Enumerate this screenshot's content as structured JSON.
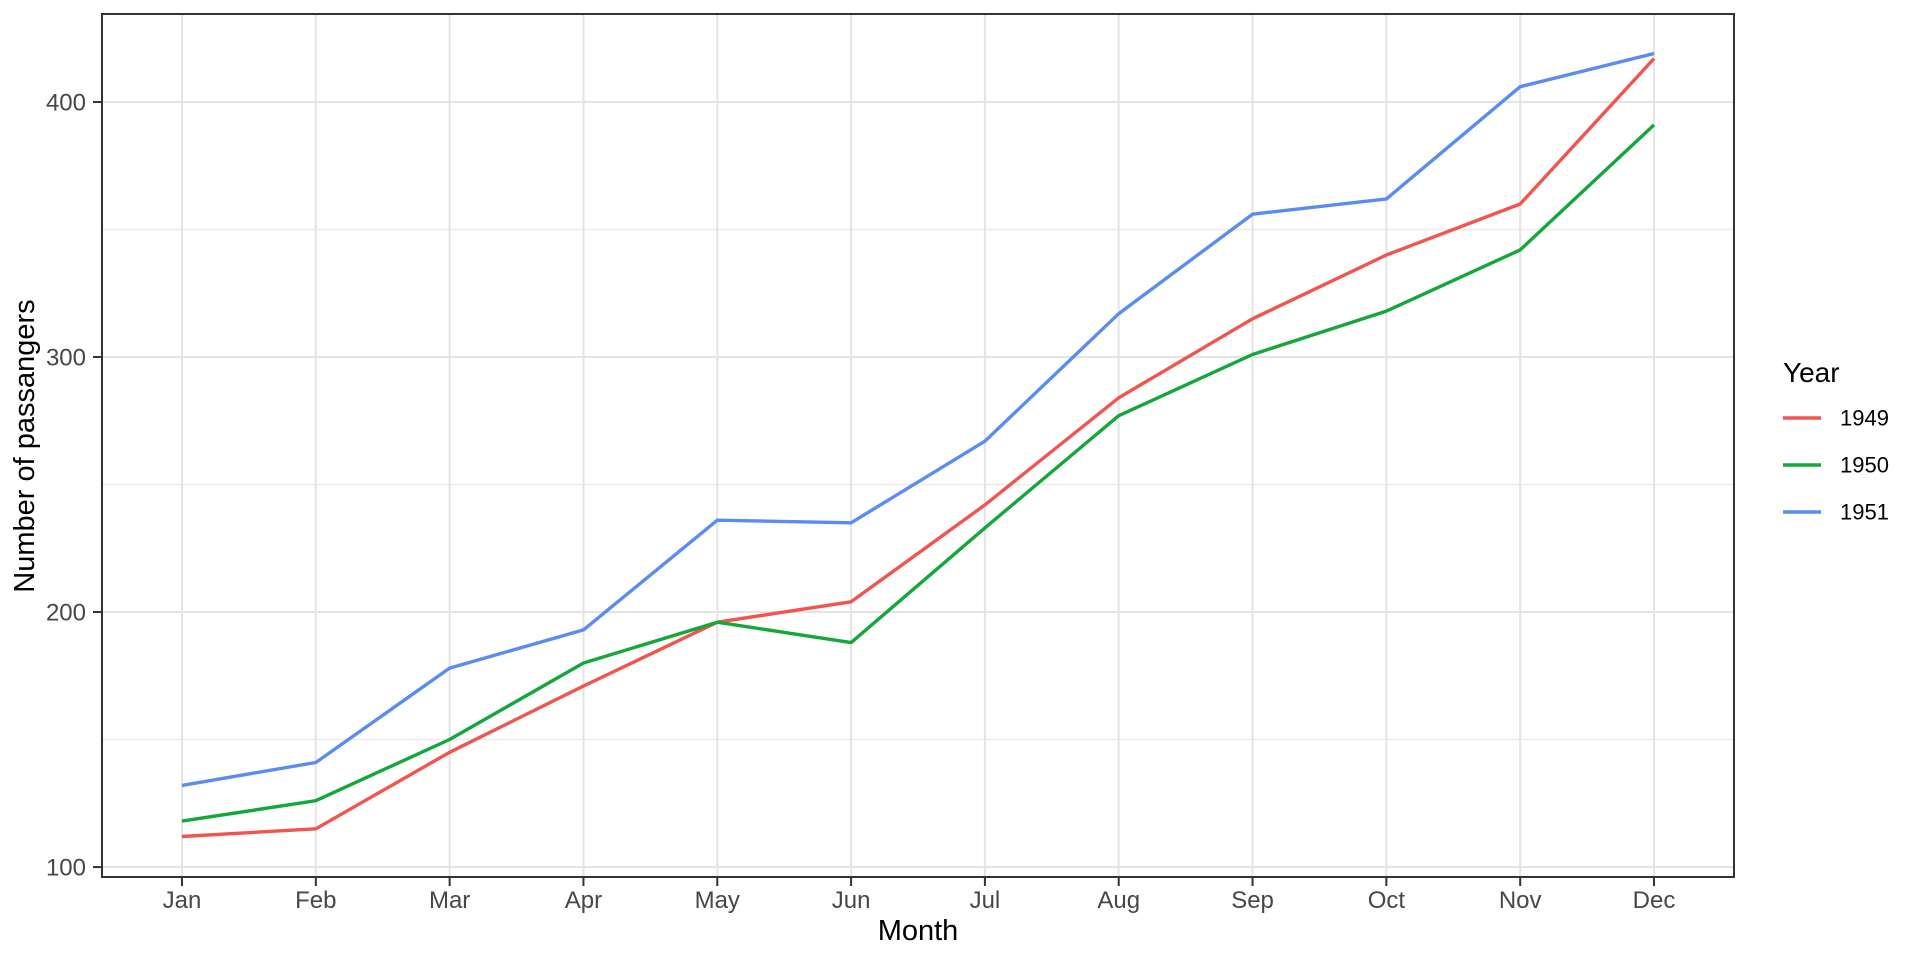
{
  "chart_data": {
    "type": "line",
    "title": "",
    "xlabel": "Month",
    "ylabel": "Number of passangers",
    "categories": [
      "Jan",
      "Feb",
      "Mar",
      "Apr",
      "May",
      "Jun",
      "Jul",
      "Aug",
      "Sep",
      "Oct",
      "Nov",
      "Dec"
    ],
    "series": [
      {
        "name": "1949",
        "color": "#F0554F",
        "values": [
          112,
          115,
          145,
          171,
          196,
          204,
          242,
          284,
          315,
          340,
          360,
          417
        ]
      },
      {
        "name": "1950",
        "color": "#15A63C",
        "values": [
          118,
          126,
          150,
          180,
          196,
          188,
          233,
          277,
          301,
          318,
          342,
          391
        ]
      },
      {
        "name": "1951",
        "color": "#5A8CF2",
        "values": [
          132,
          141,
          178,
          193,
          236,
          235,
          267,
          317,
          356,
          362,
          406,
          419
        ]
      }
    ],
    "legend": {
      "title": "Year",
      "position": "right"
    },
    "y_axis": {
      "ticks": [
        100,
        200,
        300,
        400
      ],
      "minor_ticks": [
        150,
        250,
        350
      ],
      "lim": [
        96.1,
        434.5
      ]
    },
    "x_axis": {
      "type": "discrete"
    },
    "grid": true,
    "style": {
      "panel_border_color": "#333333",
      "grid_major_color": "#E4E4E4",
      "grid_minor_color": "#ECECEC",
      "tick_color": "#333333",
      "tick_text_color": "#474747"
    }
  }
}
